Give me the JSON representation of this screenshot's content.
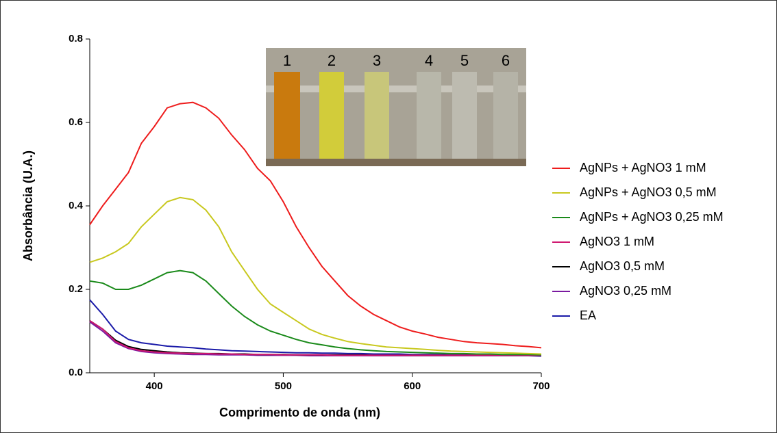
{
  "chart_data": {
    "type": "line",
    "xlabel": "Comprimento de onda (nm)",
    "ylabel": "Absorbância (U.A.)",
    "x": [
      350,
      360,
      370,
      380,
      390,
      400,
      410,
      420,
      430,
      440,
      450,
      460,
      470,
      480,
      490,
      500,
      510,
      520,
      530,
      540,
      550,
      560,
      570,
      580,
      590,
      600,
      610,
      620,
      630,
      640,
      650,
      660,
      670,
      680,
      690,
      700
    ],
    "xlim": [
      350,
      700
    ],
    "xticks": [
      400,
      500,
      600,
      700
    ],
    "ylim": [
      0,
      0.8
    ],
    "yticks": [
      {
        "value": 0,
        "label": "0.0"
      },
      0.2,
      0.4,
      0.6,
      0.8
    ],
    "inset_labels": [
      "1",
      "2",
      "3",
      "4",
      "5",
      "6"
    ],
    "series": [
      {
        "name": "AgNPs + AgNO3 1 mM",
        "color": "#ee1c1c",
        "values": [
          0.355,
          0.4,
          0.44,
          0.48,
          0.55,
          0.59,
          0.635,
          0.645,
          0.648,
          0.635,
          0.61,
          0.57,
          0.535,
          0.49,
          0.46,
          0.41,
          0.35,
          0.3,
          0.255,
          0.22,
          0.185,
          0.16,
          0.14,
          0.125,
          0.11,
          0.1,
          0.093,
          0.085,
          0.08,
          0.075,
          0.072,
          0.07,
          0.068,
          0.065,
          0.063,
          0.06
        ]
      },
      {
        "name": "AgNPs + AgNO3 0,5 mM",
        "color": "#c8c81e",
        "values": [
          0.265,
          0.275,
          0.29,
          0.31,
          0.35,
          0.38,
          0.41,
          0.42,
          0.415,
          0.39,
          0.35,
          0.29,
          0.245,
          0.2,
          0.165,
          0.145,
          0.125,
          0.105,
          0.092,
          0.083,
          0.075,
          0.07,
          0.066,
          0.062,
          0.06,
          0.058,
          0.056,
          0.054,
          0.052,
          0.051,
          0.05,
          0.049,
          0.048,
          0.047,
          0.046,
          0.045
        ]
      },
      {
        "name": "AgNPs + AgNO3 0,25 mM",
        "color": "#1a8a1a",
        "values": [
          0.22,
          0.215,
          0.2,
          0.2,
          0.21,
          0.225,
          0.24,
          0.245,
          0.24,
          0.22,
          0.19,
          0.16,
          0.135,
          0.115,
          0.1,
          0.09,
          0.08,
          0.072,
          0.067,
          0.062,
          0.058,
          0.055,
          0.053,
          0.051,
          0.05,
          0.049,
          0.048,
          0.047,
          0.046,
          0.046,
          0.045,
          0.045,
          0.044,
          0.044,
          0.044,
          0.043
        ]
      },
      {
        "name": "AgNO3 1 mM",
        "color": "#d01870",
        "values": [
          0.125,
          0.105,
          0.075,
          0.06,
          0.053,
          0.05,
          0.048,
          0.047,
          0.046,
          0.046,
          0.045,
          0.045,
          0.044,
          0.044,
          0.044,
          0.043,
          0.043,
          0.043,
          0.043,
          0.042,
          0.042,
          0.042,
          0.042,
          0.042,
          0.042,
          0.042,
          0.042,
          0.042,
          0.042,
          0.042,
          0.042,
          0.042,
          0.042,
          0.042,
          0.042,
          0.042
        ]
      },
      {
        "name": "AgNO3 0,5 mM",
        "color": "#000000",
        "values": [
          0.125,
          0.105,
          0.078,
          0.063,
          0.056,
          0.053,
          0.05,
          0.048,
          0.047,
          0.046,
          0.046,
          0.045,
          0.045,
          0.044,
          0.044,
          0.044,
          0.043,
          0.043,
          0.043,
          0.043,
          0.043,
          0.043,
          0.042,
          0.042,
          0.042,
          0.042,
          0.042,
          0.042,
          0.042,
          0.042,
          0.042,
          0.042,
          0.042,
          0.042,
          0.042,
          0.042
        ]
      },
      {
        "name": "AgNO3 0,25 mM",
        "color": "#7a1aa0",
        "values": [
          0.122,
          0.1,
          0.072,
          0.058,
          0.051,
          0.048,
          0.046,
          0.045,
          0.044,
          0.044,
          0.043,
          0.043,
          0.043,
          0.042,
          0.042,
          0.042,
          0.042,
          0.041,
          0.041,
          0.041,
          0.041,
          0.041,
          0.041,
          0.041,
          0.041,
          0.041,
          0.041,
          0.041,
          0.041,
          0.041,
          0.041,
          0.041,
          0.041,
          0.041,
          0.041,
          0.041
        ]
      },
      {
        "name": "EA",
        "color": "#1a1aa8",
        "values": [
          0.175,
          0.14,
          0.1,
          0.08,
          0.072,
          0.068,
          0.064,
          0.062,
          0.06,
          0.057,
          0.055,
          0.053,
          0.052,
          0.051,
          0.05,
          0.049,
          0.048,
          0.048,
          0.047,
          0.047,
          0.046,
          0.046,
          0.045,
          0.045,
          0.045,
          0.044,
          0.044,
          0.044,
          0.043,
          0.043,
          0.043,
          0.042,
          0.042,
          0.041,
          0.041,
          0.04
        ]
      }
    ]
  }
}
